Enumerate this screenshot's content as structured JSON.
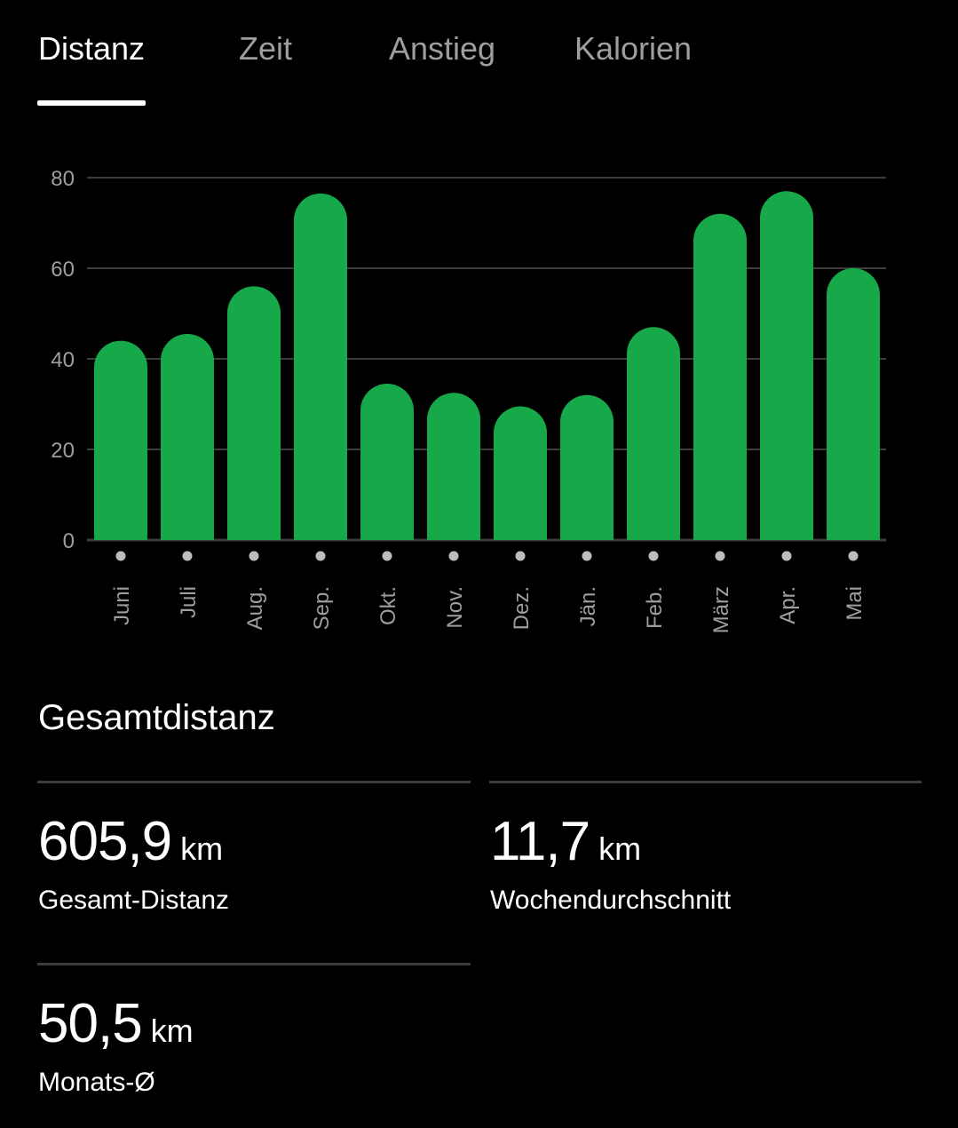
{
  "tabs": [
    {
      "label": "Distanz",
      "active": true
    },
    {
      "label": "Zeit",
      "active": false
    },
    {
      "label": "Anstieg",
      "active": false
    },
    {
      "label": "Kalorien",
      "active": false
    }
  ],
  "chart_data": {
    "type": "bar",
    "categories": [
      "Juni",
      "Juli",
      "Aug.",
      "Sep.",
      "Okt.",
      "Nov.",
      "Dez.",
      "Jän.",
      "Feb.",
      "März",
      "Apr.",
      "Mai"
    ],
    "values": [
      44,
      45.5,
      56,
      76.5,
      34.5,
      32.5,
      29.5,
      32,
      47,
      72,
      77,
      60
    ],
    "yticks": [
      0,
      20,
      40,
      60,
      80
    ],
    "ylim": [
      0,
      80
    ],
    "grid": true,
    "bar_color": "#17a84a"
  },
  "summary": {
    "title": "Gesamtdistanz",
    "stats": [
      {
        "value": "605,9",
        "unit": "km",
        "label": "Gesamt-Distanz"
      },
      {
        "value": "11,7",
        "unit": "km",
        "label": "Wochendurchschnitt"
      },
      {
        "value": "50,5",
        "unit": "km",
        "label": "Monats-Ø"
      }
    ]
  },
  "colors": {
    "background": "#000000",
    "accent": "#17a84a",
    "inactive_text": "#9e9e9e",
    "gridline": "#3c3c3c"
  }
}
